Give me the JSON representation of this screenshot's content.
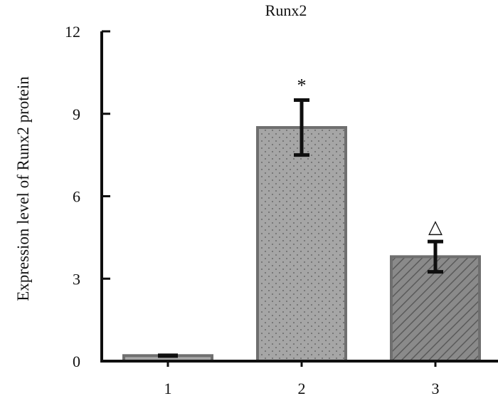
{
  "chart_data": {
    "type": "bar",
    "title": "Runx2",
    "xlabel": "",
    "ylabel": "Expression level of  Runx2  protein",
    "categories": [
      "1",
      "2",
      "3"
    ],
    "values": [
      0.2,
      8.5,
      3.8
    ],
    "errors": [
      0.05,
      1.0,
      0.55
    ],
    "annotations": [
      "",
      "*",
      "△"
    ],
    "ylim": [
      0,
      12
    ],
    "yticks": [
      0,
      3,
      6,
      9,
      12
    ],
    "grid": false,
    "legend": "none",
    "bar_patterns": [
      "solid",
      "dotted",
      "diagonal-hatch"
    ],
    "colors": {
      "bar_fill": "#a6a6a6",
      "bar_fill_dark": "#8a8a8a",
      "bar_edge": "#6f6f6f",
      "error_bar": "#0f0f0f",
      "axis": "#0f0f0f"
    }
  }
}
